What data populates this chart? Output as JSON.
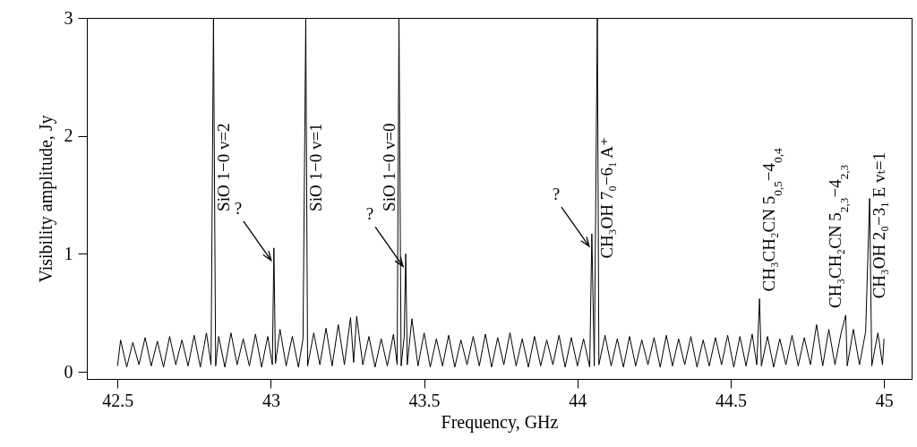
{
  "chart_data": {
    "type": "line",
    "xlabel": "Frequency, GHz",
    "ylabel": "Visibility amplitude, Jy",
    "xlim": [
      42.4,
      45.09
    ],
    "ylim": [
      -0.06,
      3
    ],
    "xticks": [
      42.5,
      43,
      43.5,
      44,
      44.5,
      45
    ],
    "yticks": [
      0,
      1,
      2,
      3
    ],
    "grid": false,
    "x": [
      42.5,
      42.51,
      42.53,
      42.55,
      42.57,
      42.59,
      42.61,
      42.63,
      42.65,
      42.67,
      42.69,
      42.71,
      42.73,
      42.75,
      42.77,
      42.79,
      42.805,
      42.813,
      42.82,
      42.83,
      42.85,
      42.87,
      42.89,
      42.91,
      42.93,
      42.95,
      42.97,
      42.99,
      43.005,
      43.01,
      43.015,
      43.03,
      43.05,
      43.07,
      43.09,
      43.105,
      43.114,
      43.12,
      43.14,
      43.16,
      43.18,
      43.2,
      43.22,
      43.24,
      43.26,
      43.27,
      43.28,
      43.3,
      43.32,
      43.34,
      43.36,
      43.38,
      43.4,
      43.412,
      43.418,
      43.425,
      43.435,
      43.44,
      43.445,
      43.46,
      43.48,
      43.5,
      43.52,
      43.54,
      43.56,
      43.58,
      43.6,
      43.62,
      43.64,
      43.66,
      43.68,
      43.7,
      43.72,
      43.74,
      43.76,
      43.78,
      43.8,
      43.82,
      43.84,
      43.86,
      43.88,
      43.9,
      43.92,
      43.94,
      43.96,
      43.98,
      44.0,
      44.02,
      44.04,
      44.047,
      44.055,
      44.065,
      44.07,
      44.09,
      44.11,
      44.13,
      44.15,
      44.17,
      44.19,
      44.21,
      44.23,
      44.25,
      44.27,
      44.29,
      44.31,
      44.33,
      44.35,
      44.37,
      44.39,
      44.41,
      44.43,
      44.45,
      44.47,
      44.49,
      44.51,
      44.53,
      44.55,
      44.57,
      44.585,
      44.594,
      44.6,
      44.62,
      44.64,
      44.66,
      44.68,
      44.7,
      44.72,
      44.74,
      44.76,
      44.78,
      44.8,
      44.82,
      44.84,
      44.86,
      44.875,
      44.88,
      44.9,
      44.92,
      44.94,
      44.953,
      44.96,
      44.98,
      44.995,
      45.0
    ],
    "series": [
      {
        "color": "#000000",
        "values": [
          0.05,
          0.27,
          0.04,
          0.25,
          0.06,
          0.29,
          0.05,
          0.26,
          0.04,
          0.3,
          0.06,
          0.27,
          0.05,
          0.31,
          0.04,
          0.33,
          0.06,
          3,
          0.05,
          0.3,
          0.04,
          0.33,
          0.06,
          0.28,
          0.05,
          0.32,
          0.04,
          0.3,
          0.06,
          1.05,
          0.07,
          0.36,
          0.05,
          0.3,
          0.04,
          0.28,
          3,
          0.05,
          0.33,
          0.06,
          0.37,
          0.05,
          0.4,
          0.06,
          0.46,
          0.08,
          0.47,
          0.06,
          0.3,
          0.04,
          0.28,
          0.05,
          0.32,
          0.06,
          3,
          0.05,
          0.3,
          1.0,
          0.06,
          0.45,
          0.05,
          0.33,
          0.04,
          0.28,
          0.05,
          0.31,
          0.04,
          0.27,
          0.06,
          0.3,
          0.05,
          0.32,
          0.04,
          0.29,
          0.06,
          0.33,
          0.05,
          0.28,
          0.04,
          0.3,
          0.05,
          0.27,
          0.06,
          0.31,
          0.04,
          0.29,
          0.05,
          0.28,
          0.04,
          1.17,
          0.05,
          3,
          0.06,
          0.31,
          0.05,
          0.28,
          0.04,
          0.3,
          0.05,
          0.27,
          0.06,
          0.29,
          0.04,
          0.31,
          0.05,
          0.28,
          0.06,
          0.3,
          0.04,
          0.27,
          0.05,
          0.29,
          0.06,
          0.31,
          0.04,
          0.3,
          0.05,
          0.32,
          0.06,
          0.62,
          0.05,
          0.3,
          0.04,
          0.28,
          0.06,
          0.31,
          0.05,
          0.29,
          0.06,
          0.4,
          0.05,
          0.36,
          0.06,
          0.33,
          0.48,
          0.05,
          0.36,
          0.06,
          0.34,
          1.47,
          0.05,
          0.33,
          0.06,
          0.28
        ]
      }
    ],
    "annotations": [
      {
        "text": "SiO 1−0 v=2",
        "x": 42.813,
        "y": 1.3
      },
      {
        "text": "SiO 1−0 v=1",
        "x": 43.114,
        "y": 1.3
      },
      {
        "text": "SiO 1−0 v=0",
        "x": 43.418,
        "y": 1.3
      },
      {
        "text": "CH₃OH 7₀−6₁ A⁺",
        "x": 44.065,
        "y": 0.9
      },
      {
        "text": "CH₃CH₂CN 5$_{0,5}$−4$_{0,4}$",
        "x": 44.594,
        "y": 0.62
      },
      {
        "text": "CH₃CH₂CN 5$_{2,3}$−4$_{2,3}$",
        "x": 44.875,
        "y": 0.48
      },
      {
        "text": "CH₃OH 2₀−3₁ E vₜ=1",
        "x": 44.953,
        "y": 0.56
      },
      {
        "text": "?",
        "x": 43.01,
        "y": 1.05
      },
      {
        "text": "?",
        "x": 43.44,
        "y": 1.0
      },
      {
        "text": "?",
        "x": 44.047,
        "y": 1.17
      }
    ]
  }
}
